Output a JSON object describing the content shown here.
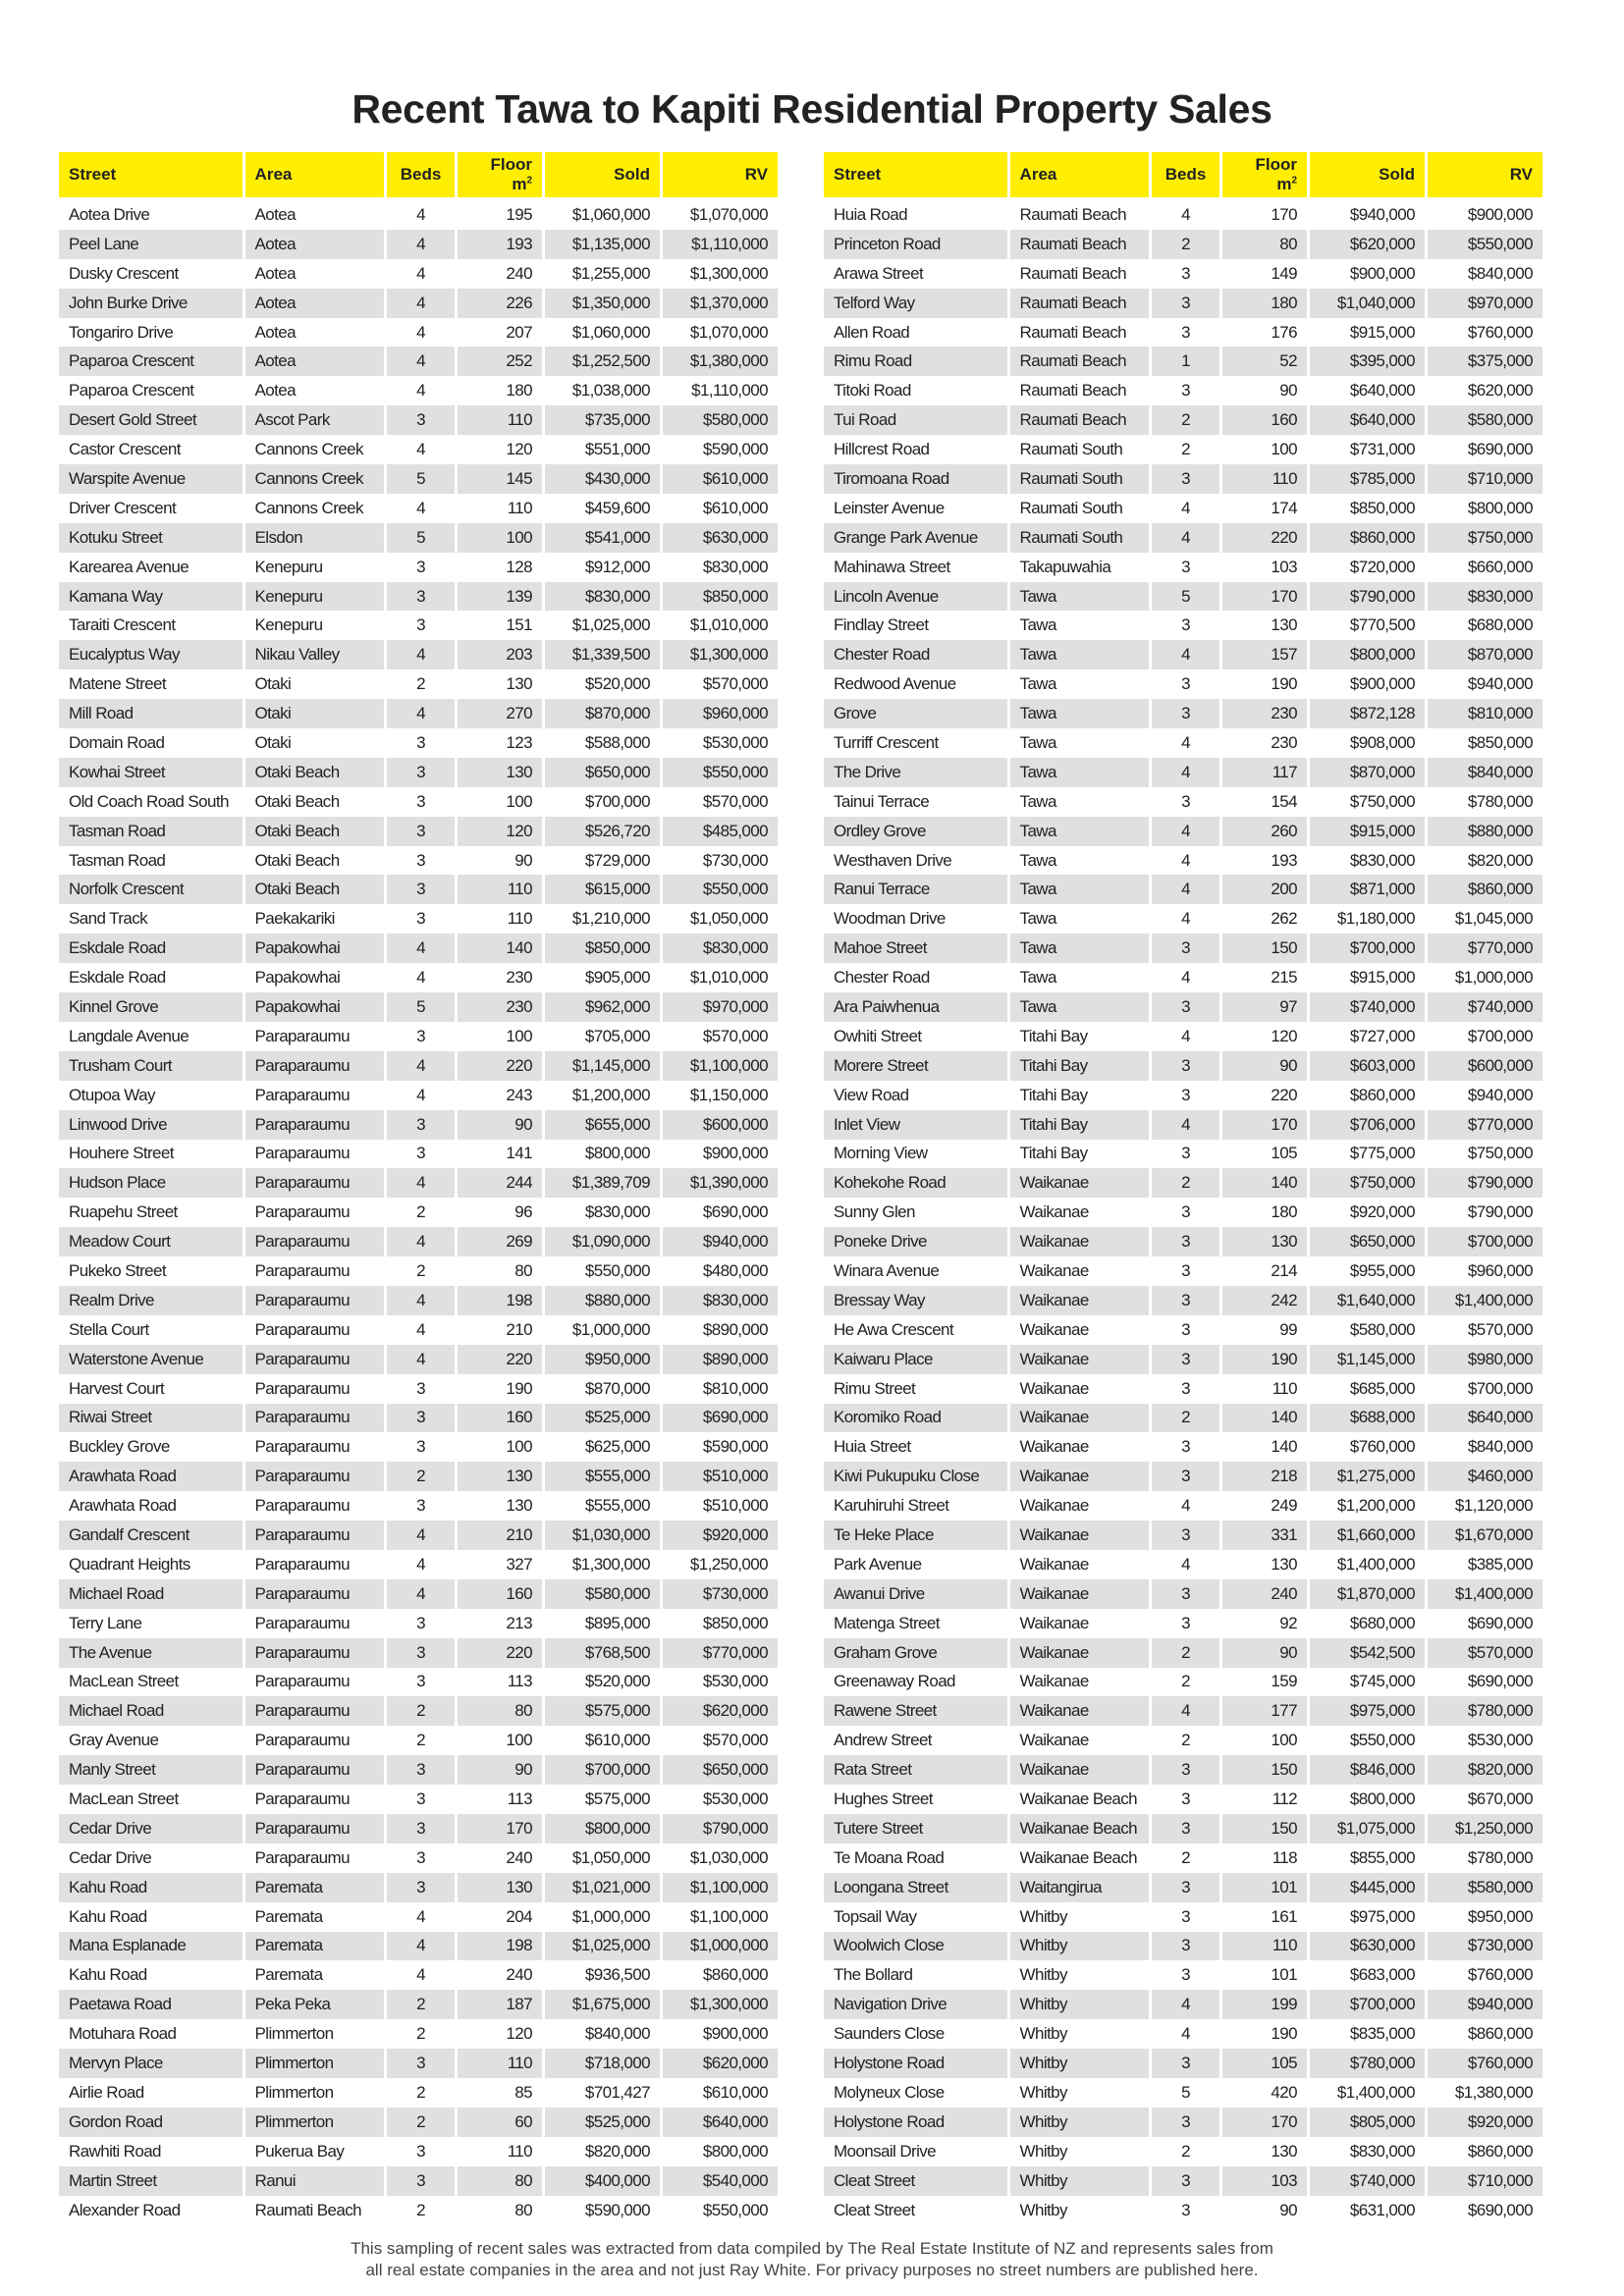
{
  "title": "Recent Tawa to Kapiti Residential Property Sales",
  "columns": [
    "Street",
    "Area",
    "Beds",
    "Floor m",
    "Sold",
    "RV"
  ],
  "floor_superscript": "2",
  "accent_color": "#ffee00",
  "alt_row_color": "#e0e0e0",
  "left_table": [
    [
      "Aotea Drive",
      "Aotea",
      "4",
      "195",
      "$1,060,000",
      "$1,070,000"
    ],
    [
      "Peel Lane",
      "Aotea",
      "4",
      "193",
      "$1,135,000",
      "$1,110,000"
    ],
    [
      "Dusky Crescent",
      "Aotea",
      "4",
      "240",
      "$1,255,000",
      "$1,300,000"
    ],
    [
      "John Burke Drive",
      "Aotea",
      "4",
      "226",
      "$1,350,000",
      "$1,370,000"
    ],
    [
      "Tongariro Drive",
      "Aotea",
      "4",
      "207",
      "$1,060,000",
      "$1,070,000"
    ],
    [
      "Paparoa Crescent",
      "Aotea",
      "4",
      "252",
      "$1,252,500",
      "$1,380,000"
    ],
    [
      "Paparoa Crescent",
      "Aotea",
      "4",
      "180",
      "$1,038,000",
      "$1,110,000"
    ],
    [
      "Desert Gold Street",
      "Ascot Park",
      "3",
      "110",
      "$735,000",
      "$580,000"
    ],
    [
      "Castor Crescent",
      "Cannons Creek",
      "4",
      "120",
      "$551,000",
      "$590,000"
    ],
    [
      "Warspite Avenue",
      "Cannons Creek",
      "5",
      "145",
      "$430,000",
      "$610,000"
    ],
    [
      "Driver Crescent",
      "Cannons Creek",
      "4",
      "110",
      "$459,600",
      "$610,000"
    ],
    [
      "Kotuku Street",
      "Elsdon",
      "5",
      "100",
      "$541,000",
      "$630,000"
    ],
    [
      "Karearea Avenue",
      "Kenepuru",
      "3",
      "128",
      "$912,000",
      "$830,000"
    ],
    [
      "Kamana Way",
      "Kenepuru",
      "3",
      "139",
      "$830,000",
      "$850,000"
    ],
    [
      "Taraiti Crescent",
      "Kenepuru",
      "3",
      "151",
      "$1,025,000",
      "$1,010,000"
    ],
    [
      "Eucalyptus Way",
      "Nikau Valley",
      "4",
      "203",
      "$1,339,500",
      "$1,300,000"
    ],
    [
      "Matene Street",
      "Otaki",
      "2",
      "130",
      "$520,000",
      "$570,000"
    ],
    [
      "Mill Road",
      "Otaki",
      "4",
      "270",
      "$870,000",
      "$960,000"
    ],
    [
      "Domain Road",
      "Otaki",
      "3",
      "123",
      "$588,000",
      "$530,000"
    ],
    [
      "Kowhai Street",
      "Otaki Beach",
      "3",
      "130",
      "$650,000",
      "$550,000"
    ],
    [
      "Old Coach Road South",
      "Otaki Beach",
      "3",
      "100",
      "$700,000",
      "$570,000"
    ],
    [
      "Tasman Road",
      "Otaki Beach",
      "3",
      "120",
      "$526,720",
      "$485,000"
    ],
    [
      "Tasman Road",
      "Otaki Beach",
      "3",
      "90",
      "$729,000",
      "$730,000"
    ],
    [
      "Norfolk Crescent",
      "Otaki Beach",
      "3",
      "110",
      "$615,000",
      "$550,000"
    ],
    [
      "Sand Track",
      "Paekakariki",
      "3",
      "110",
      "$1,210,000",
      "$1,050,000"
    ],
    [
      "Eskdale Road",
      "Papakowhai",
      "4",
      "140",
      "$850,000",
      "$830,000"
    ],
    [
      "Eskdale Road",
      "Papakowhai",
      "4",
      "230",
      "$905,000",
      "$1,010,000"
    ],
    [
      "Kinnel Grove",
      "Papakowhai",
      "5",
      "230",
      "$962,000",
      "$970,000"
    ],
    [
      "Langdale Avenue",
      "Paraparaumu",
      "3",
      "100",
      "$705,000",
      "$570,000"
    ],
    [
      "Trusham Court",
      "Paraparaumu",
      "4",
      "220",
      "$1,145,000",
      "$1,100,000"
    ],
    [
      "Otupoa Way",
      "Paraparaumu",
      "4",
      "243",
      "$1,200,000",
      "$1,150,000"
    ],
    [
      "Linwood Drive",
      "Paraparaumu",
      "3",
      "90",
      "$655,000",
      "$600,000"
    ],
    [
      "Houhere Street",
      "Paraparaumu",
      "3",
      "141",
      "$800,000",
      "$900,000"
    ],
    [
      "Hudson Place",
      "Paraparaumu",
      "4",
      "244",
      "$1,389,709",
      "$1,390,000"
    ],
    [
      "Ruapehu Street",
      "Paraparaumu",
      "2",
      "96",
      "$830,000",
      "$690,000"
    ],
    [
      "Meadow Court",
      "Paraparaumu",
      "4",
      "269",
      "$1,090,000",
      "$940,000"
    ],
    [
      "Pukeko Street",
      "Paraparaumu",
      "2",
      "80",
      "$550,000",
      "$480,000"
    ],
    [
      "Realm Drive",
      "Paraparaumu",
      "4",
      "198",
      "$880,000",
      "$830,000"
    ],
    [
      "Stella Court",
      "Paraparaumu",
      "4",
      "210",
      "$1,000,000",
      "$890,000"
    ],
    [
      "Waterstone Avenue",
      "Paraparaumu",
      "4",
      "220",
      "$950,000",
      "$890,000"
    ],
    [
      "Harvest Court",
      "Paraparaumu",
      "3",
      "190",
      "$870,000",
      "$810,000"
    ],
    [
      "Riwai Street",
      "Paraparaumu",
      "3",
      "160",
      "$525,000",
      "$690,000"
    ],
    [
      "Buckley Grove",
      "Paraparaumu",
      "3",
      "100",
      "$625,000",
      "$590,000"
    ],
    [
      "Arawhata Road",
      "Paraparaumu",
      "2",
      "130",
      "$555,000",
      "$510,000"
    ],
    [
      "Arawhata Road",
      "Paraparaumu",
      "3",
      "130",
      "$555,000",
      "$510,000"
    ],
    [
      "Gandalf Crescent",
      "Paraparaumu",
      "4",
      "210",
      "$1,030,000",
      "$920,000"
    ],
    [
      "Quadrant Heights",
      "Paraparaumu",
      "4",
      "327",
      "$1,300,000",
      "$1,250,000"
    ],
    [
      "Michael Road",
      "Paraparaumu",
      "4",
      "160",
      "$580,000",
      "$730,000"
    ],
    [
      "Terry Lane",
      "Paraparaumu",
      "3",
      "213",
      "$895,000",
      "$850,000"
    ],
    [
      "The Avenue",
      "Paraparaumu",
      "3",
      "220",
      "$768,500",
      "$770,000"
    ],
    [
      "MacLean Street",
      "Paraparaumu",
      "3",
      "113",
      "$520,000",
      "$530,000"
    ],
    [
      "Michael Road",
      "Paraparaumu",
      "2",
      "80",
      "$575,000",
      "$620,000"
    ],
    [
      "Gray Avenue",
      "Paraparaumu",
      "2",
      "100",
      "$610,000",
      "$570,000"
    ],
    [
      "Manly Street",
      "Paraparaumu",
      "3",
      "90",
      "$700,000",
      "$650,000"
    ],
    [
      "MacLean Street",
      "Paraparaumu",
      "3",
      "113",
      "$575,000",
      "$530,000"
    ],
    [
      "Cedar Drive",
      "Paraparaumu",
      "3",
      "170",
      "$800,000",
      "$790,000"
    ],
    [
      "Cedar Drive",
      "Paraparaumu",
      "3",
      "240",
      "$1,050,000",
      "$1,030,000"
    ],
    [
      "Kahu Road",
      "Paremata",
      "3",
      "130",
      "$1,021,000",
      "$1,100,000"
    ],
    [
      "Kahu Road",
      "Paremata",
      "4",
      "204",
      "$1,000,000",
      "$1,100,000"
    ],
    [
      "Mana Esplanade",
      "Paremata",
      "4",
      "198",
      "$1,025,000",
      "$1,000,000"
    ],
    [
      "Kahu Road",
      "Paremata",
      "4",
      "240",
      "$936,500",
      "$860,000"
    ],
    [
      "Paetawa Road",
      "Peka Peka",
      "2",
      "187",
      "$1,675,000",
      "$1,300,000"
    ],
    [
      "Motuhara Road",
      "Plimmerton",
      "2",
      "120",
      "$840,000",
      "$900,000"
    ],
    [
      "Mervyn Place",
      "Plimmerton",
      "3",
      "110",
      "$718,000",
      "$620,000"
    ],
    [
      "Airlie Road",
      "Plimmerton",
      "2",
      "85",
      "$701,427",
      "$610,000"
    ],
    [
      "Gordon Road",
      "Plimmerton",
      "2",
      "60",
      "$525,000",
      "$640,000"
    ],
    [
      "Rawhiti Road",
      "Pukerua Bay",
      "3",
      "110",
      "$820,000",
      "$800,000"
    ],
    [
      "Martin Street",
      "Ranui",
      "3",
      "80",
      "$400,000",
      "$540,000"
    ],
    [
      "Alexander Road",
      "Raumati Beach",
      "2",
      "80",
      "$590,000",
      "$550,000"
    ]
  ],
  "right_table": [
    [
      "Huia Road",
      "Raumati Beach",
      "4",
      "170",
      "$940,000",
      "$900,000"
    ],
    [
      "Princeton Road",
      "Raumati Beach",
      "2",
      "80",
      "$620,000",
      "$550,000"
    ],
    [
      "Arawa Street",
      "Raumati Beach",
      "3",
      "149",
      "$900,000",
      "$840,000"
    ],
    [
      "Telford Way",
      "Raumati Beach",
      "3",
      "180",
      "$1,040,000",
      "$970,000"
    ],
    [
      "Allen Road",
      "Raumati Beach",
      "3",
      "176",
      "$915,000",
      "$760,000"
    ],
    [
      "Rimu Road",
      "Raumati Beach",
      "1",
      "52",
      "$395,000",
      "$375,000"
    ],
    [
      "Titoki Road",
      "Raumati Beach",
      "3",
      "90",
      "$640,000",
      "$620,000"
    ],
    [
      "Tui Road",
      "Raumati Beach",
      "2",
      "160",
      "$640,000",
      "$580,000"
    ],
    [
      "Hillcrest Road",
      "Raumati South",
      "2",
      "100",
      "$731,000",
      "$690,000"
    ],
    [
      "Tiromoana Road",
      "Raumati South",
      "3",
      "110",
      "$785,000",
      "$710,000"
    ],
    [
      "Leinster Avenue",
      "Raumati South",
      "4",
      "174",
      "$850,000",
      "$800,000"
    ],
    [
      "Grange Park Avenue",
      "Raumati South",
      "4",
      "220",
      "$860,000",
      "$750,000"
    ],
    [
      "Mahinawa Street",
      "Takapuwahia",
      "3",
      "103",
      "$720,000",
      "$660,000"
    ],
    [
      "Lincoln Avenue",
      "Tawa",
      "5",
      "170",
      "$790,000",
      "$830,000"
    ],
    [
      "Findlay Street",
      "Tawa",
      "3",
      "130",
      "$770,500",
      "$680,000"
    ],
    [
      "Chester Road",
      "Tawa",
      "4",
      "157",
      "$800,000",
      "$870,000"
    ],
    [
      "Redwood Avenue",
      "Tawa",
      "3",
      "190",
      "$900,000",
      "$940,000"
    ],
    [
      "Grove",
      "Tawa",
      "3",
      "230",
      "$872,128",
      "$810,000"
    ],
    [
      "Turriff Crescent",
      "Tawa",
      "4",
      "230",
      "$908,000",
      "$850,000"
    ],
    [
      "The Drive",
      "Tawa",
      "4",
      "117",
      "$870,000",
      "$840,000"
    ],
    [
      "Tainui Terrace",
      "Tawa",
      "3",
      "154",
      "$750,000",
      "$780,000"
    ],
    [
      "Ordley Grove",
      "Tawa",
      "4",
      "260",
      "$915,000",
      "$880,000"
    ],
    [
      "Westhaven Drive",
      "Tawa",
      "4",
      "193",
      "$830,000",
      "$820,000"
    ],
    [
      "Ranui Terrace",
      "Tawa",
      "4",
      "200",
      "$871,000",
      "$860,000"
    ],
    [
      "Woodman Drive",
      "Tawa",
      "4",
      "262",
      "$1,180,000",
      "$1,045,000"
    ],
    [
      "Mahoe Street",
      "Tawa",
      "3",
      "150",
      "$700,000",
      "$770,000"
    ],
    [
      "Chester Road",
      "Tawa",
      "4",
      "215",
      "$915,000",
      "$1,000,000"
    ],
    [
      "Ara Paiwhenua",
      "Tawa",
      "3",
      "97",
      "$740,000",
      "$740,000"
    ],
    [
      "Owhiti Street",
      "Titahi Bay",
      "4",
      "120",
      "$727,000",
      "$700,000"
    ],
    [
      "Morere Street",
      "Titahi Bay",
      "3",
      "90",
      "$603,000",
      "$600,000"
    ],
    [
      "View Road",
      "Titahi Bay",
      "3",
      "220",
      "$860,000",
      "$940,000"
    ],
    [
      "Inlet View",
      "Titahi Bay",
      "4",
      "170",
      "$706,000",
      "$770,000"
    ],
    [
      "Morning View",
      "Titahi Bay",
      "3",
      "105",
      "$775,000",
      "$750,000"
    ],
    [
      "Kohekohe Road",
      "Waikanae",
      "2",
      "140",
      "$750,000",
      "$790,000"
    ],
    [
      "Sunny Glen",
      "Waikanae",
      "3",
      "180",
      "$920,000",
      "$790,000"
    ],
    [
      "Poneke Drive",
      "Waikanae",
      "3",
      "130",
      "$650,000",
      "$700,000"
    ],
    [
      "Winara Avenue",
      "Waikanae",
      "3",
      "214",
      "$955,000",
      "$960,000"
    ],
    [
      "Bressay Way",
      "Waikanae",
      "3",
      "242",
      "$1,640,000",
      "$1,400,000"
    ],
    [
      "He Awa Crescent",
      "Waikanae",
      "3",
      "99",
      "$580,000",
      "$570,000"
    ],
    [
      "Kaiwaru Place",
      "Waikanae",
      "3",
      "190",
      "$1,145,000",
      "$980,000"
    ],
    [
      "Rimu Street",
      "Waikanae",
      "3",
      "110",
      "$685,000",
      "$700,000"
    ],
    [
      "Koromiko Road",
      "Waikanae",
      "2",
      "140",
      "$688,000",
      "$640,000"
    ],
    [
      "Huia Street",
      "Waikanae",
      "3",
      "140",
      "$760,000",
      "$840,000"
    ],
    [
      "Kiwi Pukupuku Close",
      "Waikanae",
      "3",
      "218",
      "$1,275,000",
      "$460,000"
    ],
    [
      "Karuhiruhi Street",
      "Waikanae",
      "4",
      "249",
      "$1,200,000",
      "$1,120,000"
    ],
    [
      "Te Heke Place",
      "Waikanae",
      "3",
      "331",
      "$1,660,000",
      "$1,670,000"
    ],
    [
      "Park Avenue",
      "Waikanae",
      "4",
      "130",
      "$1,400,000",
      "$385,000"
    ],
    [
      "Awanui Drive",
      "Waikanae",
      "3",
      "240",
      "$1,870,000",
      "$1,400,000"
    ],
    [
      "Matenga Street",
      "Waikanae",
      "3",
      "92",
      "$680,000",
      "$690,000"
    ],
    [
      "Graham Grove",
      "Waikanae",
      "2",
      "90",
      "$542,500",
      "$570,000"
    ],
    [
      "Greenaway Road",
      "Waikanae",
      "2",
      "159",
      "$745,000",
      "$690,000"
    ],
    [
      "Rawene Street",
      "Waikanae",
      "4",
      "177",
      "$975,000",
      "$780,000"
    ],
    [
      "Andrew Street",
      "Waikanae",
      "2",
      "100",
      "$550,000",
      "$530,000"
    ],
    [
      "Rata Street",
      "Waikanae",
      "3",
      "150",
      "$846,000",
      "$820,000"
    ],
    [
      "Hughes Street",
      "Waikanae Beach",
      "3",
      "112",
      "$800,000",
      "$670,000"
    ],
    [
      "Tutere Street",
      "Waikanae Beach",
      "3",
      "150",
      "$1,075,000",
      "$1,250,000"
    ],
    [
      "Te Moana Road",
      "Waikanae Beach",
      "2",
      "118",
      "$855,000",
      "$780,000"
    ],
    [
      "Loongana Street",
      "Waitangirua",
      "3",
      "101",
      "$445,000",
      "$580,000"
    ],
    [
      "Topsail Way",
      "Whitby",
      "3",
      "161",
      "$975,000",
      "$950,000"
    ],
    [
      "Woolwich Close",
      "Whitby",
      "3",
      "110",
      "$630,000",
      "$730,000"
    ],
    [
      "The Bollard",
      "Whitby",
      "3",
      "101",
      "$683,000",
      "$760,000"
    ],
    [
      "Navigation Drive",
      "Whitby",
      "4",
      "199",
      "$700,000",
      "$940,000"
    ],
    [
      "Saunders Close",
      "Whitby",
      "4",
      "190",
      "$835,000",
      "$860,000"
    ],
    [
      "Holystone Road",
      "Whitby",
      "3",
      "105",
      "$780,000",
      "$760,000"
    ],
    [
      "Molyneux Close",
      "Whitby",
      "5",
      "420",
      "$1,400,000",
      "$1,380,000"
    ],
    [
      "Holystone Road",
      "Whitby",
      "3",
      "170",
      "$805,000",
      "$920,000"
    ],
    [
      "Moonsail Drive",
      "Whitby",
      "2",
      "130",
      "$830,000",
      "$860,000"
    ],
    [
      "Cleat Street",
      "Whitby",
      "3",
      "103",
      "$740,000",
      "$710,000"
    ],
    [
      "Cleat Street",
      "Whitby",
      "3",
      "90",
      "$631,000",
      "$690,000"
    ]
  ],
  "footer": {
    "line1": "This sampling of recent sales was extracted from data compiled by The Real Estate Institute of NZ and represents sales from",
    "line2": "all real estate companies in the area and not just Ray White. For privacy purposes no street numbers are published here."
  }
}
